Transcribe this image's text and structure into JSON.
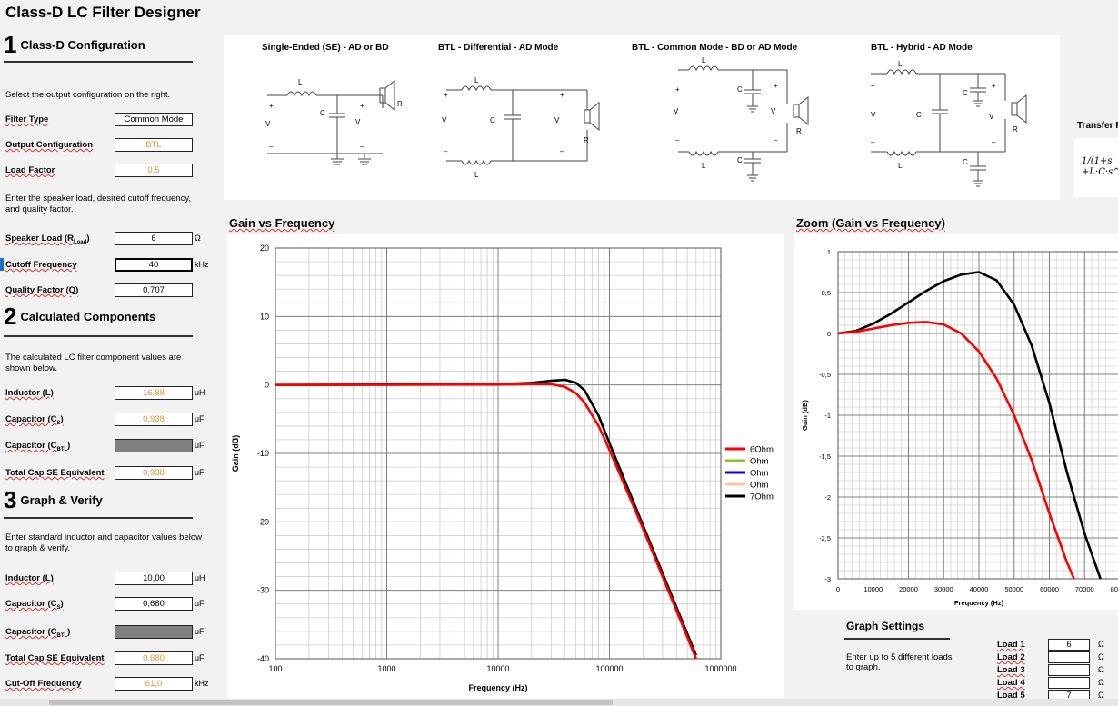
{
  "app": {
    "title": "Class-D LC Filter Designer"
  },
  "sections": [
    {
      "num": "1",
      "title": "Class-D Configuration"
    },
    {
      "num": "2",
      "title": "Calculated Components"
    },
    {
      "num": "3",
      "title": "Graph & Verify"
    }
  ],
  "config": {
    "intro": "Select the output configuration on the right.",
    "filter_type_label": "Filter Type",
    "filter_type": "Common Mode",
    "output_config_label": "Output Configuration",
    "output_config": "BTL",
    "load_factor_label": "Load Factor",
    "load_factor": "0,5",
    "speaker_intro": "Enter the speaker load, desired cutoff frequency, and quality factor.",
    "speaker_load_label": "Speaker Load (R",
    "speaker_load_sub": "Load",
    "speaker_load": "6",
    "speaker_load_unit": "Ω",
    "cutoff_label": "Cutoff Frequency",
    "cutoff": "40",
    "cutoff_unit": "kHz",
    "q_label": "Quality Factor (Q)",
    "q": "0,707"
  },
  "calculated": {
    "intro": "The calculated LC filter component values are shown below.",
    "inductor_label": "Inductor (L)",
    "inductor": "16,88",
    "inductor_unit": "uH",
    "cap_label": "Capacitor (C",
    "cap_sub": "S",
    "cap": "0,938",
    "cap_unit": "uF",
    "cap_btl_label": "Capacitor (C",
    "cap_btl_sub": "BTL",
    "cap_btl_unit": "uF",
    "total_cap_label": "Total Cap SE Equivalent",
    "total_cap": "0,938",
    "total_cap_unit": "uF"
  },
  "verify": {
    "intro": "Enter standard inductor and capacitor values below to graph & verify.",
    "inductor_label": "Inductor (L)",
    "inductor": "10,00",
    "inductor_unit": "uH",
    "cap_label": "Capacitor (C",
    "cap_sub": "S",
    "cap": "0,680",
    "cap_unit": "uF",
    "cap_btl_label": "Capacitor (C",
    "cap_btl_sub": "BTL",
    "cap_btl_unit": "uF",
    "total_cap_label": "Total Cap SE Equivalent",
    "total_cap": "0,680",
    "total_cap_unit": "uF",
    "cutoff_label": "Cut-Off Frequency",
    "cutoff": "61,0",
    "cutoff_unit": "kHz"
  },
  "diagrams": {
    "titles": [
      "Single-Ended (SE) - AD or BD",
      "BTL - Differential - AD Mode",
      "BTL - Common Mode  - BD or AD Mode",
      "BTL - Hybrid - AD Mode"
    ],
    "labels": {
      "L": "L",
      "vin": "V",
      "vin_sub": "in",
      "vout": "V",
      "vout_sub": "out",
      "rload": "R",
      "rload_sub": "Load",
      "cs": "C",
      "cs_sub": "S",
      "cbtl": "C",
      "cbtl_sub": "BTL",
      "plus": "+",
      "minus": "–"
    }
  },
  "transfer": {
    "title": "Transfer F",
    "line1": "1/(1+s",
    "line2": "+L·C·s^"
  },
  "chart_data": [
    {
      "type": "line",
      "title": "Gain vs Frequency",
      "xlabel": "Frequency (Hz)",
      "ylabel": "Gain (dB)",
      "x_scale": "log",
      "xlim": [
        100,
        1000000
      ],
      "ylim": [
        -40,
        20
      ],
      "x_ticks": [
        100,
        1000,
        10000,
        100000,
        1000000
      ],
      "y_ticks": [
        20,
        10,
        0,
        -10,
        -20,
        -30,
        -40
      ],
      "grid": true,
      "legend_position": "right",
      "legend": [
        {
          "name": "6Ohm",
          "color": "#ff0000"
        },
        {
          "name": "Ohm",
          "color": "#92c020"
        },
        {
          "name": "Ohm",
          "color": "#0000ff"
        },
        {
          "name": "Ohm",
          "color": "#f8c8a0"
        },
        {
          "name": "7Ohm",
          "color": "#000000"
        }
      ],
      "series": [
        {
          "name": "7Ohm",
          "color": "#000000",
          "x": [
            100,
            10000,
            20000,
            30000,
            40000,
            50000,
            60000,
            80000,
            100000,
            200000,
            400000,
            600000
          ],
          "y": [
            0,
            0.1,
            0.3,
            0.6,
            0.75,
            0.3,
            -0.8,
            -4.5,
            -8.5,
            -20.5,
            -32.5,
            -39.5
          ]
        },
        {
          "name": "6Ohm",
          "color": "#ff0000",
          "x": [
            100,
            10000,
            20000,
            30000,
            40000,
            50000,
            60000,
            80000,
            100000,
            200000,
            400000,
            600000
          ],
          "y": [
            0,
            0.05,
            0.12,
            0.1,
            -0.3,
            -1.2,
            -2.6,
            -6,
            -9.5,
            -21,
            -33,
            -40
          ]
        }
      ]
    },
    {
      "type": "line",
      "title": "Zoom (Gain vs Frequency)",
      "xlabel": "Frequency (Hz)",
      "ylabel": "Gain (dB)",
      "xlim": [
        0,
        80000
      ],
      "ylim": [
        -3,
        1
      ],
      "x_ticks": [
        0,
        10000,
        20000,
        30000,
        40000,
        50000,
        60000,
        70000,
        80000
      ],
      "y_ticks": [
        1,
        0.5,
        0,
        -0.5,
        -1,
        -1.5,
        -2,
        -2.5,
        -3
      ],
      "y_tick_labels": [
        "1",
        "0,5",
        "0",
        "-0,5",
        "-1",
        "-1,5",
        "-2",
        "-2,5",
        "-3"
      ],
      "grid": true,
      "series": [
        {
          "name": "7Ohm",
          "color": "#000000",
          "x": [
            0,
            5000,
            10000,
            15000,
            20000,
            25000,
            30000,
            35000,
            40000,
            45000,
            50000,
            55000,
            60000,
            65000,
            70000,
            74500
          ],
          "y": [
            0,
            0.03,
            0.12,
            0.24,
            0.38,
            0.52,
            0.64,
            0.72,
            0.75,
            0.65,
            0.35,
            -0.15,
            -0.85,
            -1.7,
            -2.45,
            -3
          ]
        },
        {
          "name": "6Ohm",
          "color": "#ff0000",
          "x": [
            0,
            5000,
            10000,
            15000,
            20000,
            25000,
            30000,
            35000,
            40000,
            45000,
            50000,
            55000,
            60000,
            65000,
            67000
          ],
          "y": [
            0,
            0.02,
            0.06,
            0.1,
            0.13,
            0.14,
            0.11,
            0.0,
            -0.22,
            -0.55,
            -1.0,
            -1.55,
            -2.2,
            -2.8,
            -3
          ]
        }
      ]
    }
  ],
  "graph_settings": {
    "title": "Graph Settings",
    "intro": "Enter up to 5 different loads to graph.",
    "loads": [
      {
        "label": "Load 1",
        "value": "6",
        "unit": "Ω"
      },
      {
        "label": "Load 2",
        "value": "",
        "unit": "Ω"
      },
      {
        "label": "Load 3",
        "value": "",
        "unit": "Ω"
      },
      {
        "label": "Load 4",
        "value": "",
        "unit": "Ω"
      },
      {
        "label": "Load 5",
        "value": "7",
        "unit": "Ω"
      }
    ]
  }
}
